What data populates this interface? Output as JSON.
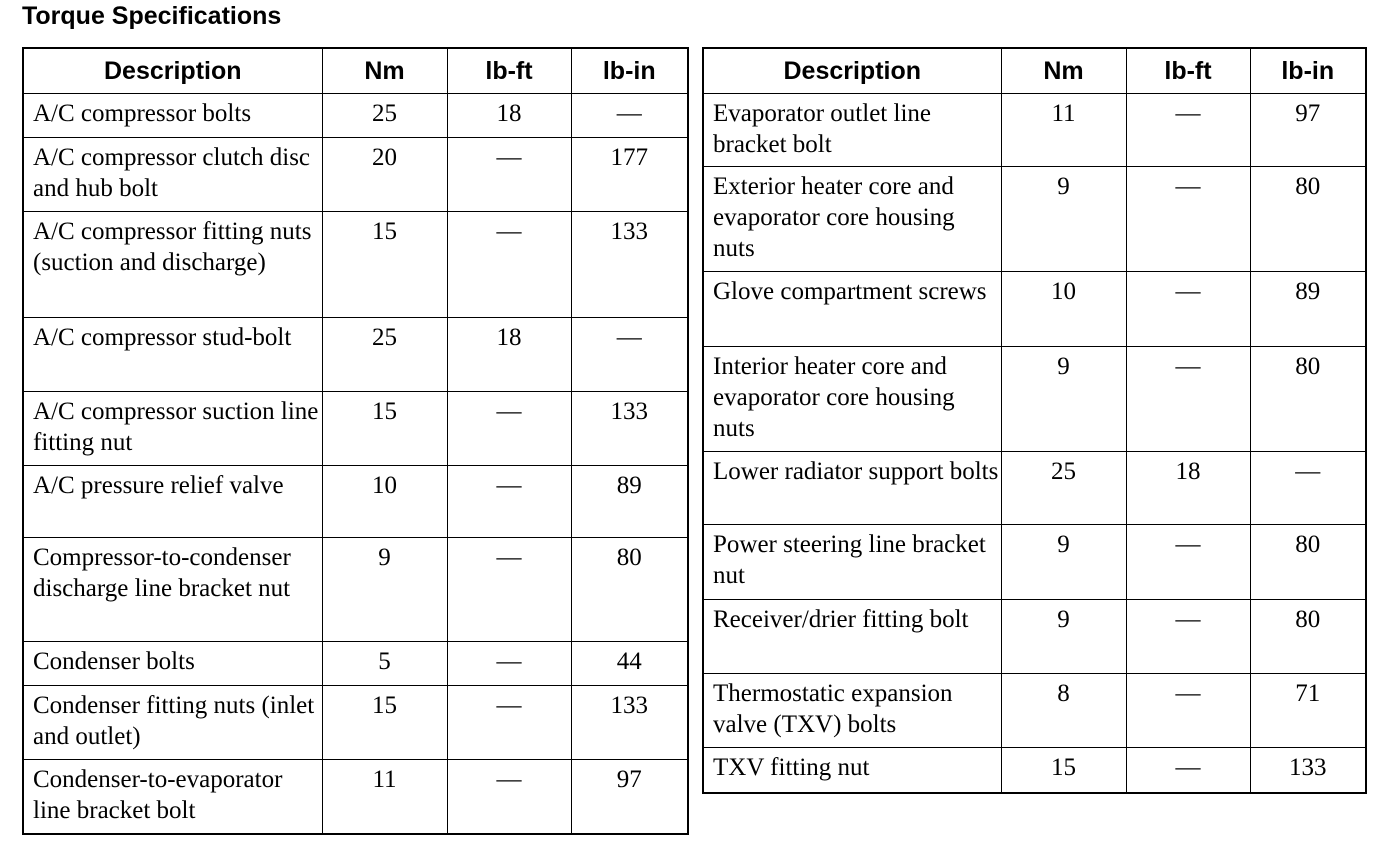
{
  "title": "Torque Specifications",
  "tables": [
    {
      "header": [
        "Description",
        "Nm",
        "lb-ft",
        "lb-in"
      ],
      "rows": [
        [
          "A/C compressor bolts",
          25,
          18,
          "—"
        ],
        [
          "A/C compressor clutch disc and hub bolt",
          20,
          "—",
          177
        ],
        [
          "A/C compressor fitting nuts (suction and discharge)",
          15,
          "—",
          133
        ],
        [
          "A/C compressor stud-bolt",
          25,
          18,
          "—"
        ],
        [
          "A/C compressor suction line fitting nut",
          15,
          "—",
          133
        ],
        [
          "A/C pressure relief valve",
          10,
          "—",
          89
        ],
        [
          "Compressor-to-condenser discharge line bracket nut",
          9,
          "—",
          80
        ],
        [
          "Condenser bolts",
          5,
          "—",
          44
        ],
        [
          "Condenser fitting nuts (inlet and outlet)",
          15,
          "—",
          133
        ],
        [
          "Condenser-to-evaporator line bracket bolt",
          11,
          "—",
          97
        ]
      ]
    },
    {
      "header": [
        "Description",
        "Nm",
        "lb-ft",
        "lb-in"
      ],
      "rows": [
        [
          "Evaporator outlet line bracket bolt",
          11,
          "—",
          97
        ],
        [
          "Exterior heater core and evaporator core housing nuts",
          9,
          "—",
          80
        ],
        [
          "Glove compartment screws",
          10,
          "—",
          89
        ],
        [
          "Interior heater core and evaporator core housing nuts",
          9,
          "—",
          80
        ],
        [
          "Lower radiator support bolts",
          25,
          18,
          "—"
        ],
        [
          "Power steering line bracket nut",
          9,
          "—",
          80
        ],
        [
          "Receiver/drier fitting bolt",
          9,
          "—",
          80
        ],
        [
          "Thermostatic expansion valve (TXV) bolts",
          8,
          "—",
          71
        ],
        [
          "TXV fitting nut",
          15,
          "—",
          133
        ]
      ]
    }
  ]
}
